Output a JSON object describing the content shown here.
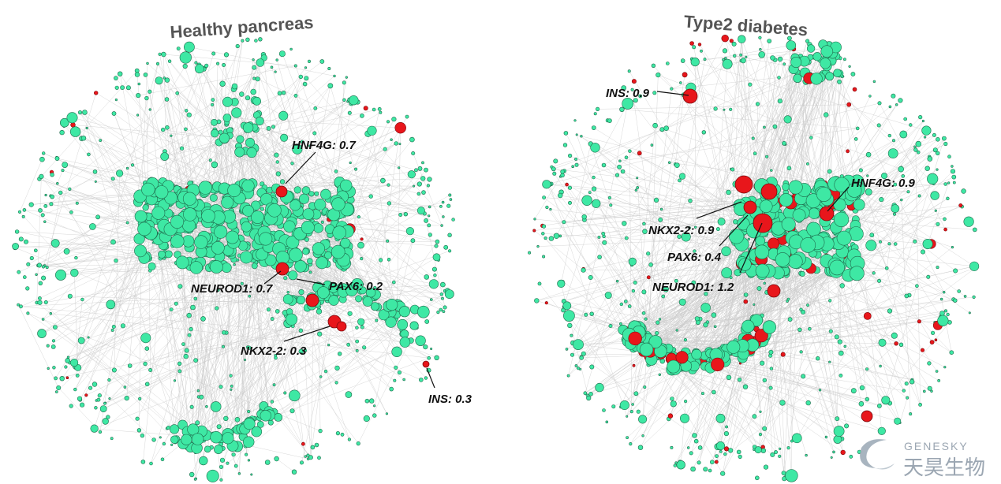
{
  "panels": [
    {
      "title": "Healthy pancreas",
      "genes": [
        {
          "gene": "HNF4G",
          "score": 0.7,
          "label": "HNF4G: 0.7"
        },
        {
          "gene": "NEUROD1",
          "score": 0.7,
          "label": "NEUROD1: 0.7"
        },
        {
          "gene": "PAX6",
          "score": 0.2,
          "label": "PAX6: 0.2"
        },
        {
          "gene": "NKX2-2",
          "score": 0.3,
          "label": "NKX2-2: 0.3"
        },
        {
          "gene": "INS",
          "score": 0.3,
          "label": "INS: 0.3"
        }
      ]
    },
    {
      "title": "Type2 diabetes",
      "genes": [
        {
          "gene": "INS",
          "score": 0.9,
          "label": "INS: 0.9"
        },
        {
          "gene": "HNF4G",
          "score": 0.9,
          "label": "HNF4G: 0.9"
        },
        {
          "gene": "NKX2-2",
          "score": 0.9,
          "label": "NKX2-2: 0.9"
        },
        {
          "gene": "PAX6",
          "score": 0.4,
          "label": "PAX6: 0.4"
        },
        {
          "gene": "NEUROD1",
          "score": 1.2,
          "label": "NEUROD1: 1.2"
        }
      ]
    }
  ],
  "colors": {
    "normal_node": "#3ee8a4",
    "highlight_node": "#e8161b",
    "edge": "#c9c9c9",
    "node_outline": "#1f6b4c"
  },
  "watermark": {
    "brand": "GENESKY",
    "brand_cn": "天昊生物"
  }
}
